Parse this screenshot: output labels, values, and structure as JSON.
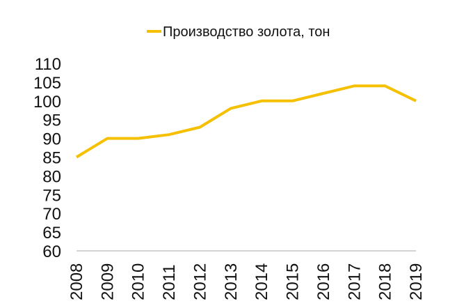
{
  "chart_data": {
    "type": "line",
    "categories": [
      "2008",
      "2009",
      "2010",
      "2011",
      "2012",
      "2013",
      "2014",
      "2015",
      "2016",
      "2017",
      "2018",
      "2019"
    ],
    "series": [
      {
        "name": "Производство золота, тон",
        "values": [
          85,
          90,
          90,
          91,
          93,
          98,
          100,
          100,
          102,
          104,
          104,
          100
        ],
        "color": "#F5C000"
      }
    ],
    "yticks": [
      "60",
      "65",
      "70",
      "75",
      "80",
      "85",
      "90",
      "95",
      "100",
      "105",
      "110"
    ],
    "ylim": [
      60,
      110
    ],
    "grid": false,
    "legend": "top",
    "axis_color": "#a6a6a6"
  }
}
